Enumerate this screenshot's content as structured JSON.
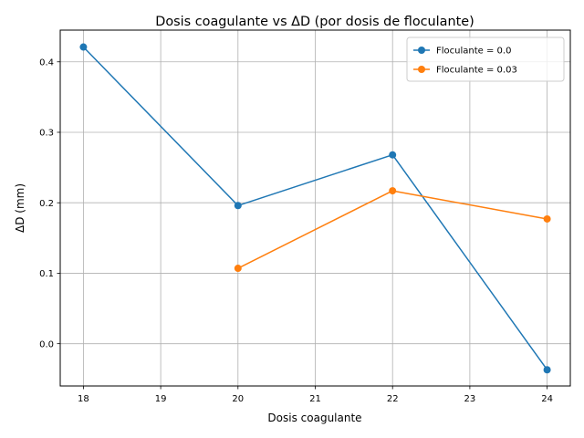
{
  "chart_data": {
    "type": "line",
    "title": "Dosis coagulante vs ΔD (por dosis de floculante)",
    "xlabel": "Dosis coagulante",
    "ylabel": "ΔD (mm)",
    "xlim": [
      17.7,
      24.3
    ],
    "ylim": [
      -0.06,
      0.445
    ],
    "xticks": [
      18,
      19,
      20,
      21,
      22,
      23,
      24
    ],
    "yticks": [
      0.0,
      0.1,
      0.2,
      0.3,
      0.4
    ],
    "ytick_labels": [
      "0.0",
      "0.1",
      "0.2",
      "0.3",
      "0.4"
    ],
    "grid": true,
    "legend_position": "top-right",
    "series": [
      {
        "name": "Floculante = 0.0",
        "color": "#1f77b4",
        "x": [
          18,
          20,
          22,
          24
        ],
        "y": [
          0.421,
          0.196,
          0.268,
          -0.037
        ]
      },
      {
        "name": "Floculante = 0.03",
        "color": "#ff7f0e",
        "x": [
          20,
          22,
          24
        ],
        "y": [
          0.107,
          0.217,
          0.177
        ]
      }
    ]
  }
}
